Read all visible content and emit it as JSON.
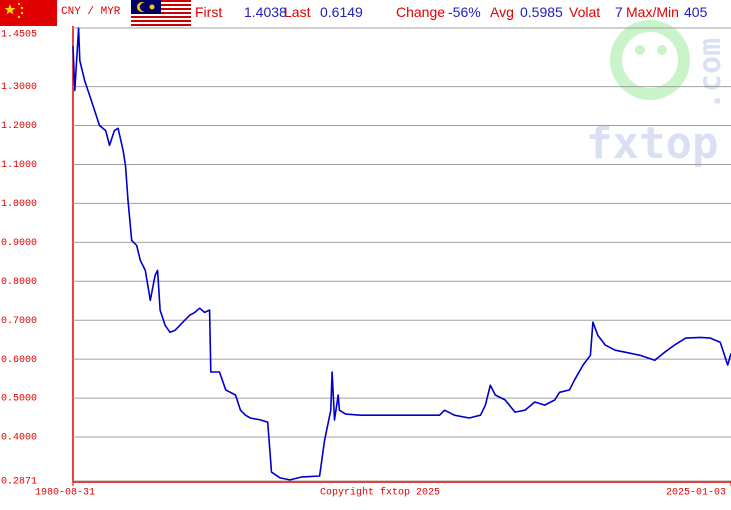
{
  "header": {
    "pair": "CNY / MYR",
    "stats": [
      {
        "label": "First",
        "value": "1.4038"
      },
      {
        "label": "Last",
        "value": "0.6149"
      },
      {
        "label": "Change",
        "value": "-56%"
      },
      {
        "label": "Avg",
        "value": "0.5985"
      },
      {
        "label": "Volat",
        "value": "7"
      },
      {
        "label": "Max/Min",
        "value": "405"
      }
    ]
  },
  "watermark": {
    "brand": "fxtop",
    "domain": ".com"
  },
  "chart_data": {
    "type": "line",
    "copyright": "Copyright fxtop 2025",
    "xlim": [
      "1980-08-31",
      "2025-01-03"
    ],
    "xticks": [
      "1980-08-31",
      "2025-01-03"
    ],
    "ylim": [
      0.2871,
      1.4505
    ],
    "yticks": [
      {
        "value": 0.2871,
        "label": "0.2871"
      },
      {
        "value": 0.4,
        "label": "0.4000"
      },
      {
        "value": 0.5,
        "label": "0.5000"
      },
      {
        "value": 0.6,
        "label": "0.6000"
      },
      {
        "value": 0.7,
        "label": "0.7000"
      },
      {
        "value": 0.8,
        "label": "0.8000"
      },
      {
        "value": 0.9,
        "label": "0.9000"
      },
      {
        "value": 1.0,
        "label": "1.0000"
      },
      {
        "value": 1.1,
        "label": "1.1000"
      },
      {
        "value": 1.2,
        "label": "1.2000"
      },
      {
        "value": 1.3,
        "label": "1.3000"
      },
      {
        "value": 1.4505,
        "label": "1.4505"
      }
    ],
    "grid": true,
    "x": [
      "1980-08-31",
      "1980-10",
      "1981-01",
      "1981-02",
      "1981-06",
      "1981-10",
      "1982-02",
      "1982-06",
      "1982-11",
      "1983-02",
      "1983-06",
      "1983-09",
      "1984-01",
      "1984-03",
      "1984-05",
      "1984-08",
      "1984-12",
      "1985-03",
      "1985-07",
      "1985-11",
      "1986-03",
      "1986-05",
      "1986-07",
      "1986-11",
      "1987-03",
      "1987-07",
      "1987-11",
      "1988-03",
      "1988-07",
      "1988-11",
      "1989-03",
      "1989-07",
      "1989-11",
      "1989-12",
      "1990-07",
      "1990-12",
      "1991-08",
      "1991-12",
      "1992-04",
      "1992-08",
      "1993-04",
      "1993-10",
      "1994-01",
      "1994-08",
      "1995-04",
      "1996-01",
      "1997-04",
      "1997-08",
      "1998-01",
      "1998-02",
      "1998-04",
      "1998-07",
      "1998-08",
      "1999-01",
      "2000-01",
      "2002-09",
      "2005-05",
      "2005-09",
      "2006-05",
      "2007-05",
      "2008-02",
      "2008-06",
      "2008-10",
      "2009-02",
      "2009-10",
      "2010-06",
      "2011-02",
      "2011-10",
      "2012-06",
      "2013-02",
      "2013-06",
      "2014-02",
      "2014-06",
      "2015-01",
      "2015-07",
      "2015-09",
      "2016-01",
      "2016-07",
      "2017-03",
      "2017-11",
      "2018-11",
      "2019-11",
      "2020-07",
      "2021-03",
      "2021-12",
      "2022-12",
      "2023-08",
      "2024-04",
      "2024-10",
      "2025-01-03"
    ],
    "series": [
      {
        "color": "#0000cc",
        "values": [
          1.4038,
          1.29,
          1.4505,
          1.367,
          1.315,
          1.277,
          1.238,
          1.2,
          1.187,
          1.149,
          1.187,
          1.193,
          1.136,
          1.097,
          1.008,
          0.905,
          0.892,
          0.854,
          0.828,
          0.751,
          0.815,
          0.828,
          0.726,
          0.687,
          0.669,
          0.674,
          0.687,
          0.7,
          0.713,
          0.72,
          0.731,
          0.72,
          0.726,
          0.567,
          0.567,
          0.521,
          0.508,
          0.469,
          0.456,
          0.449,
          0.444,
          0.438,
          0.31,
          0.295,
          0.29,
          0.297,
          0.3,
          0.392,
          0.469,
          0.567,
          0.444,
          0.508,
          0.469,
          0.459,
          0.456,
          0.456,
          0.456,
          0.469,
          0.456,
          0.449,
          0.456,
          0.482,
          0.533,
          0.508,
          0.495,
          0.464,
          0.469,
          0.49,
          0.482,
          0.495,
          0.515,
          0.521,
          0.546,
          0.585,
          0.61,
          0.695,
          0.661,
          0.636,
          0.623,
          0.618,
          0.61,
          0.597,
          0.618,
          0.636,
          0.654,
          0.656,
          0.654,
          0.643,
          0.585,
          0.6149
        ]
      }
    ]
  }
}
